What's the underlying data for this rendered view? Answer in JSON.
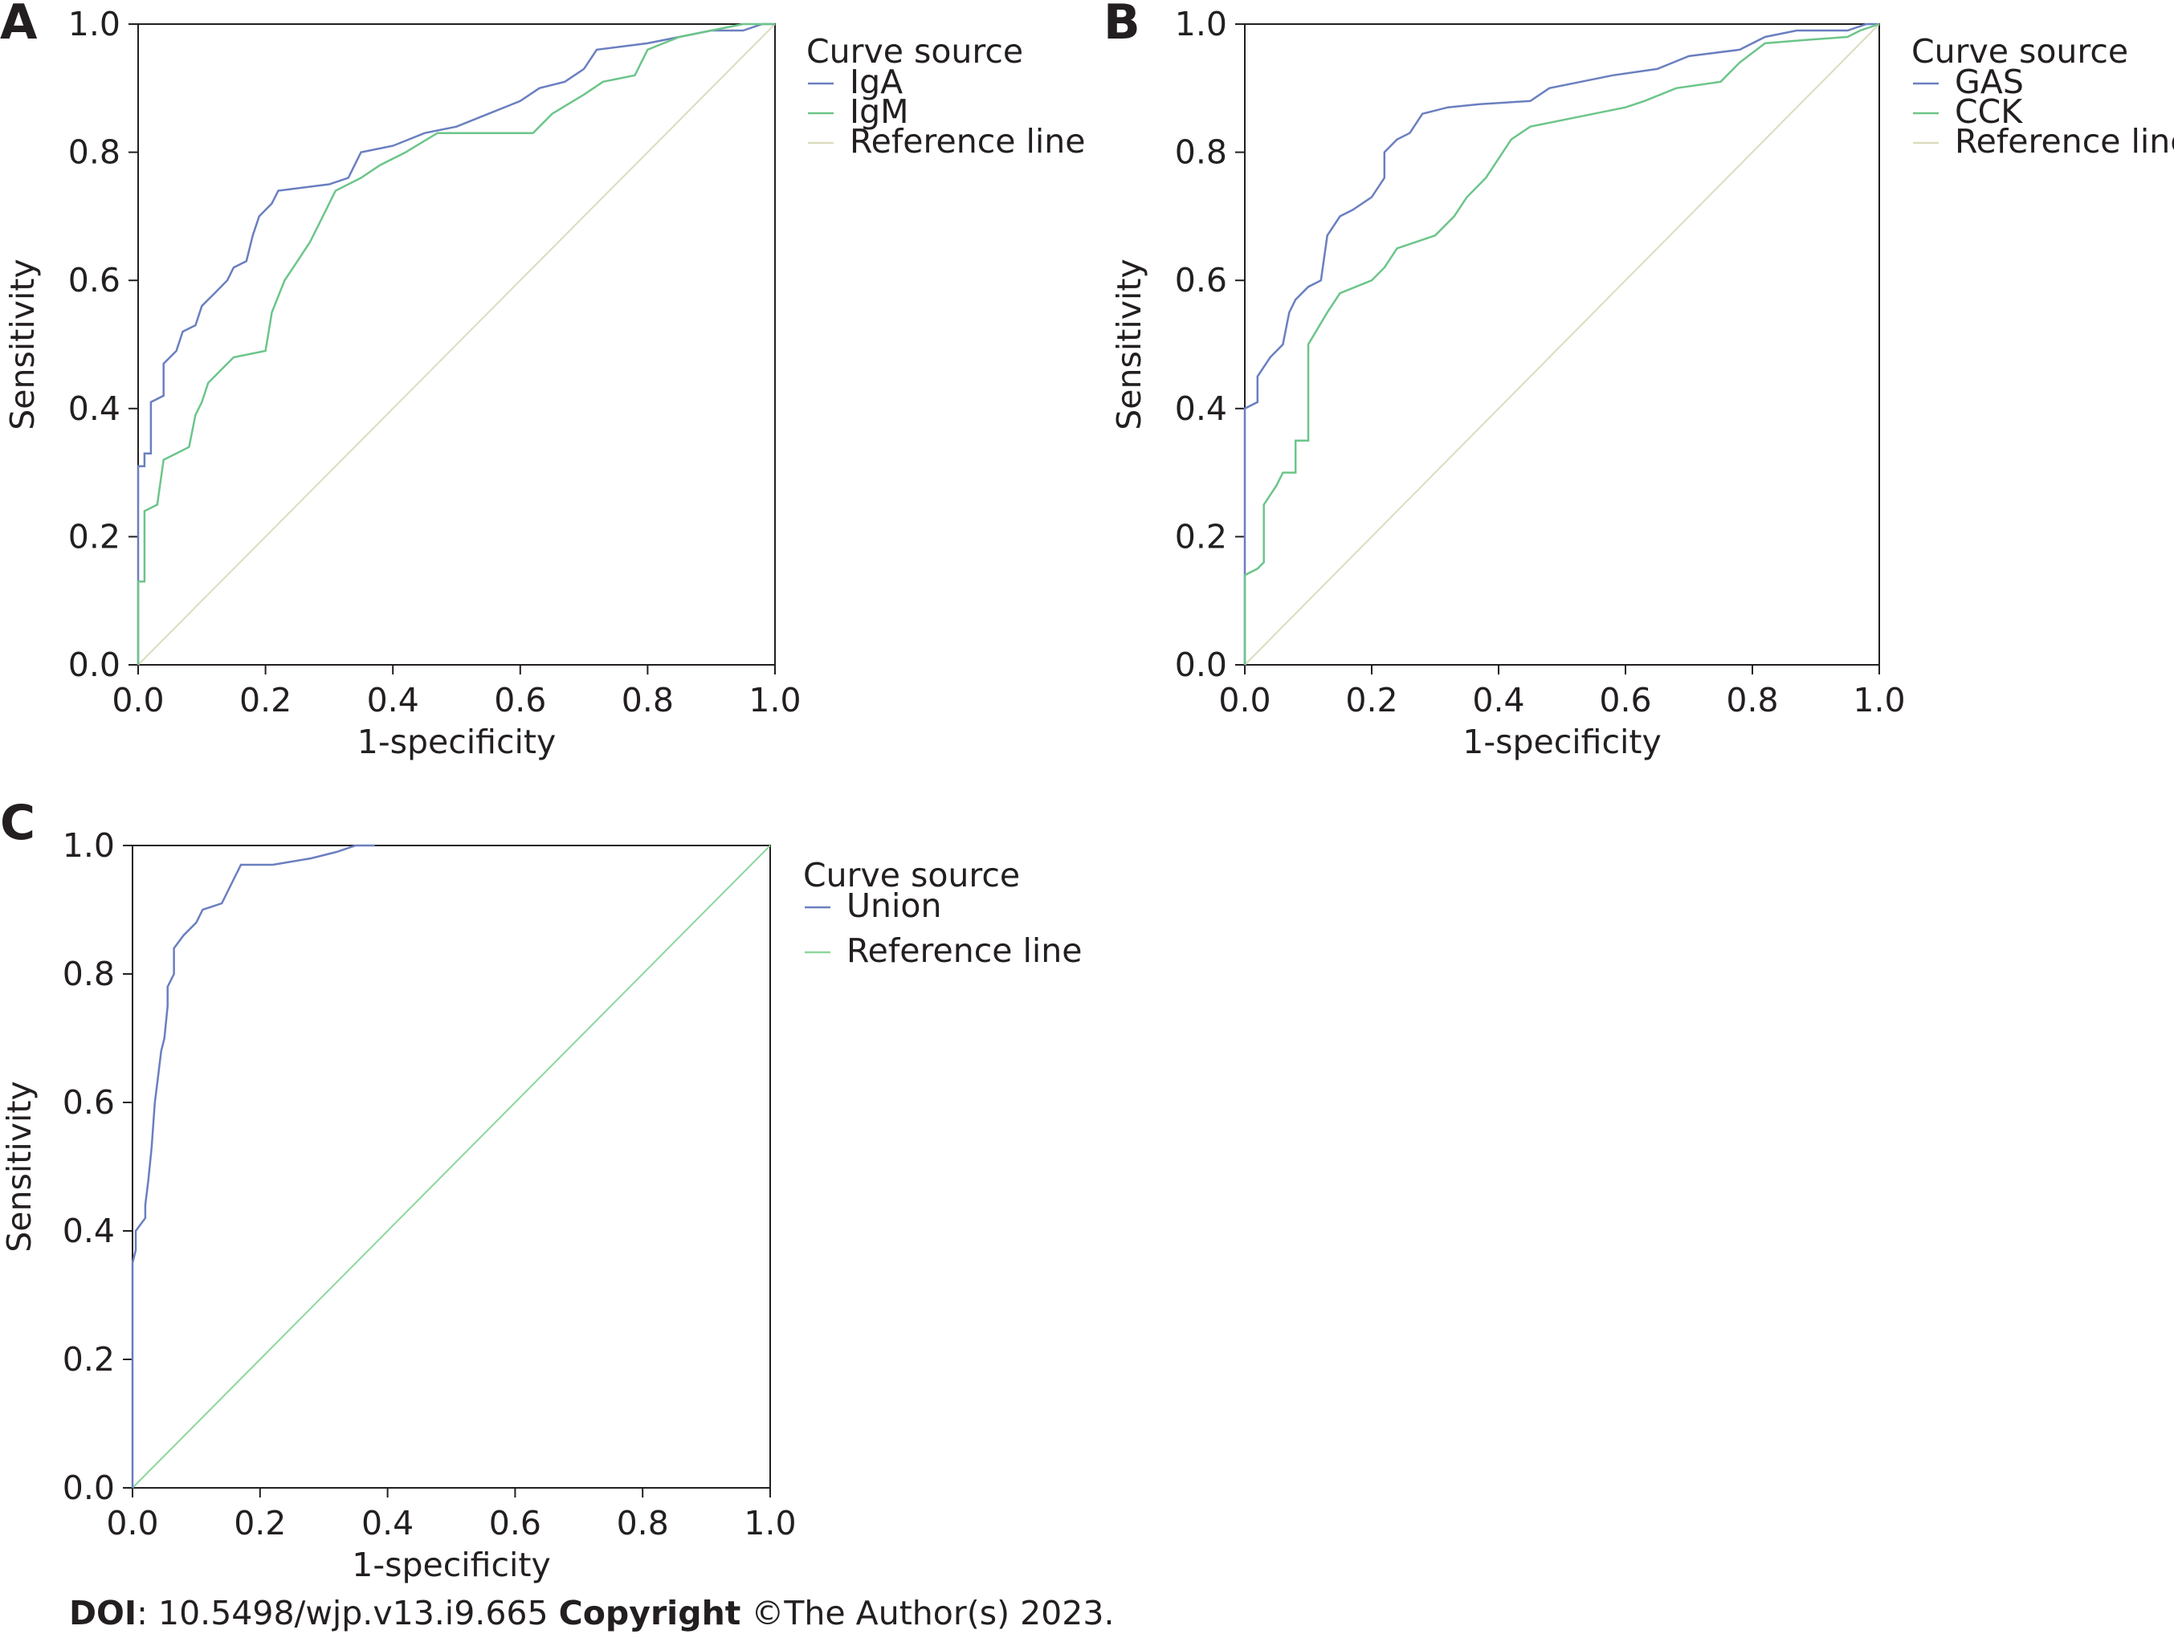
{
  "colors": {
    "blue": "#6a7fc0",
    "green": "#6cc58a",
    "reference_tan": "#dcdcc0",
    "reference_green": "#8dd79c",
    "text": "#231f20",
    "axis": "#231f20"
  },
  "footer": {
    "doi_label": "DOI",
    "doi_value": ": 10.5498/wjp.v13.i9.665 ",
    "copyright_label": "Copyright",
    "copyright_value": " ©The Author(s) 2023."
  },
  "chart_data": [
    {
      "panel": "A",
      "type": "line",
      "xlabel": "1-specificity",
      "ylabel": "Sensitivity",
      "xlim": [
        0,
        1
      ],
      "ylim": [
        0,
        1
      ],
      "xticks": [
        "0.0",
        "0.2",
        "0.4",
        "0.6",
        "0.8",
        "1.0"
      ],
      "yticks": [
        "0.0",
        "0.2",
        "0.4",
        "0.6",
        "0.8",
        "1.0"
      ],
      "legend_title": "Curve source",
      "legend_position": "right",
      "series": [
        {
          "name": "IgA",
          "color_key": "blue",
          "points": [
            [
              0,
              0
            ],
            [
              0,
              0.31
            ],
            [
              0.01,
              0.31
            ],
            [
              0.01,
              0.33
            ],
            [
              0.02,
              0.33
            ],
            [
              0.02,
              0.41
            ],
            [
              0.04,
              0.42
            ],
            [
              0.04,
              0.47
            ],
            [
              0.06,
              0.49
            ],
            [
              0.07,
              0.52
            ],
            [
              0.09,
              0.53
            ],
            [
              0.1,
              0.56
            ],
            [
              0.12,
              0.58
            ],
            [
              0.14,
              0.6
            ],
            [
              0.15,
              0.62
            ],
            [
              0.17,
              0.63
            ],
            [
              0.18,
              0.67
            ],
            [
              0.19,
              0.7
            ],
            [
              0.21,
              0.72
            ],
            [
              0.22,
              0.74
            ],
            [
              0.26,
              0.745
            ],
            [
              0.3,
              0.75
            ],
            [
              0.33,
              0.76
            ],
            [
              0.35,
              0.8
            ],
            [
              0.4,
              0.81
            ],
            [
              0.45,
              0.83
            ],
            [
              0.5,
              0.84
            ],
            [
              0.55,
              0.86
            ],
            [
              0.6,
              0.88
            ],
            [
              0.63,
              0.9
            ],
            [
              0.67,
              0.91
            ],
            [
              0.7,
              0.93
            ],
            [
              0.72,
              0.96
            ],
            [
              0.8,
              0.97
            ],
            [
              0.85,
              0.98
            ],
            [
              0.9,
              0.99
            ],
            [
              0.95,
              0.99
            ],
            [
              0.98,
              1.0
            ],
            [
              1,
              1
            ]
          ]
        },
        {
          "name": "IgM",
          "color_key": "green",
          "points": [
            [
              0,
              0
            ],
            [
              0,
              0.13
            ],
            [
              0.01,
              0.13
            ],
            [
              0.01,
              0.24
            ],
            [
              0.03,
              0.25
            ],
            [
              0.04,
              0.32
            ],
            [
              0.06,
              0.33
            ],
            [
              0.08,
              0.34
            ],
            [
              0.09,
              0.39
            ],
            [
              0.1,
              0.41
            ],
            [
              0.11,
              0.44
            ],
            [
              0.13,
              0.46
            ],
            [
              0.15,
              0.48
            ],
            [
              0.2,
              0.49
            ],
            [
              0.21,
              0.55
            ],
            [
              0.23,
              0.6
            ],
            [
              0.25,
              0.63
            ],
            [
              0.27,
              0.66
            ],
            [
              0.29,
              0.7
            ],
            [
              0.31,
              0.74
            ],
            [
              0.35,
              0.76
            ],
            [
              0.38,
              0.78
            ],
            [
              0.42,
              0.8
            ],
            [
              0.47,
              0.83
            ],
            [
              0.55,
              0.83
            ],
            [
              0.62,
              0.83
            ],
            [
              0.65,
              0.86
            ],
            [
              0.7,
              0.89
            ],
            [
              0.73,
              0.91
            ],
            [
              0.78,
              0.92
            ],
            [
              0.8,
              0.96
            ],
            [
              0.85,
              0.98
            ],
            [
              0.9,
              0.99
            ],
            [
              0.95,
              1.0
            ],
            [
              1,
              1
            ]
          ]
        },
        {
          "name": "Reference line",
          "color_key": "reference_tan",
          "points": [
            [
              0,
              0
            ],
            [
              1,
              1
            ]
          ]
        }
      ]
    },
    {
      "panel": "B",
      "type": "line",
      "xlabel": "1-specificity",
      "ylabel": "Sensitivity",
      "xlim": [
        0,
        1
      ],
      "ylim": [
        0,
        1
      ],
      "xticks": [
        "0.0",
        "0.2",
        "0.4",
        "0.6",
        "0.8",
        "1.0"
      ],
      "yticks": [
        "0.0",
        "0.2",
        "0.4",
        "0.6",
        "0.8",
        "1.0"
      ],
      "legend_title": "Curve source",
      "legend_position": "right",
      "series": [
        {
          "name": "GAS",
          "color_key": "blue",
          "points": [
            [
              0,
              0
            ],
            [
              0,
              0.4
            ],
            [
              0.02,
              0.41
            ],
            [
              0.02,
              0.45
            ],
            [
              0.04,
              0.48
            ],
            [
              0.06,
              0.5
            ],
            [
              0.07,
              0.55
            ],
            [
              0.08,
              0.57
            ],
            [
              0.1,
              0.59
            ],
            [
              0.12,
              0.6
            ],
            [
              0.13,
              0.67
            ],
            [
              0.15,
              0.7
            ],
            [
              0.17,
              0.71
            ],
            [
              0.2,
              0.73
            ],
            [
              0.22,
              0.76
            ],
            [
              0.22,
              0.8
            ],
            [
              0.24,
              0.82
            ],
            [
              0.26,
              0.83
            ],
            [
              0.28,
              0.86
            ],
            [
              0.32,
              0.87
            ],
            [
              0.37,
              0.875
            ],
            [
              0.45,
              0.88
            ],
            [
              0.48,
              0.9
            ],
            [
              0.53,
              0.91
            ],
            [
              0.58,
              0.92
            ],
            [
              0.65,
              0.93
            ],
            [
              0.7,
              0.95
            ],
            [
              0.78,
              0.96
            ],
            [
              0.82,
              0.98
            ],
            [
              0.87,
              0.99
            ],
            [
              0.95,
              0.99
            ],
            [
              0.98,
              1.0
            ],
            [
              1,
              1
            ]
          ]
        },
        {
          "name": "CCK",
          "color_key": "green",
          "points": [
            [
              0,
              0
            ],
            [
              0,
              0.14
            ],
            [
              0.02,
              0.15
            ],
            [
              0.03,
              0.16
            ],
            [
              0.03,
              0.25
            ],
            [
              0.05,
              0.28
            ],
            [
              0.06,
              0.3
            ],
            [
              0.08,
              0.3
            ],
            [
              0.08,
              0.35
            ],
            [
              0.1,
              0.35
            ],
            [
              0.1,
              0.5
            ],
            [
              0.13,
              0.55
            ],
            [
              0.15,
              0.58
            ],
            [
              0.2,
              0.6
            ],
            [
              0.22,
              0.62
            ],
            [
              0.24,
              0.65
            ],
            [
              0.27,
              0.66
            ],
            [
              0.3,
              0.67
            ],
            [
              0.33,
              0.7
            ],
            [
              0.35,
              0.73
            ],
            [
              0.38,
              0.76
            ],
            [
              0.4,
              0.79
            ],
            [
              0.42,
              0.82
            ],
            [
              0.45,
              0.84
            ],
            [
              0.5,
              0.85
            ],
            [
              0.55,
              0.86
            ],
            [
              0.6,
              0.87
            ],
            [
              0.63,
              0.88
            ],
            [
              0.68,
              0.9
            ],
            [
              0.75,
              0.91
            ],
            [
              0.78,
              0.94
            ],
            [
              0.82,
              0.97
            ],
            [
              0.88,
              0.975
            ],
            [
              0.95,
              0.98
            ],
            [
              0.97,
              0.99
            ],
            [
              1,
              1
            ]
          ]
        },
        {
          "name": "Reference line",
          "color_key": "reference_tan",
          "points": [
            [
              0,
              0
            ],
            [
              1,
              1
            ]
          ]
        }
      ]
    },
    {
      "panel": "C",
      "type": "line",
      "xlabel": "1-specificity",
      "ylabel": "Sensitivity",
      "xlim": [
        0,
        1
      ],
      "ylim": [
        0,
        1
      ],
      "xticks": [
        "0.0",
        "0.2",
        "0.4",
        "0.6",
        "0.8",
        "1.0"
      ],
      "yticks": [
        "0.0",
        "0.2",
        "0.4",
        "0.6",
        "0.8",
        "1.0"
      ],
      "legend_title": "Curve source",
      "legend_position": "right",
      "series": [
        {
          "name": "Union",
          "color_key": "blue",
          "points": [
            [
              0,
              0
            ],
            [
              0,
              0.35
            ],
            [
              0.005,
              0.37
            ],
            [
              0.005,
              0.4
            ],
            [
              0.02,
              0.42
            ],
            [
              0.02,
              0.44
            ],
            [
              0.025,
              0.48
            ],
            [
              0.03,
              0.53
            ],
            [
              0.035,
              0.6
            ],
            [
              0.04,
              0.64
            ],
            [
              0.045,
              0.68
            ],
            [
              0.05,
              0.7
            ],
            [
              0.055,
              0.75
            ],
            [
              0.055,
              0.78
            ],
            [
              0.065,
              0.8
            ],
            [
              0.065,
              0.84
            ],
            [
              0.08,
              0.86
            ],
            [
              0.1,
              0.88
            ],
            [
              0.11,
              0.9
            ],
            [
              0.14,
              0.91
            ],
            [
              0.15,
              0.93
            ],
            [
              0.16,
              0.95
            ],
            [
              0.17,
              0.97
            ],
            [
              0.22,
              0.97
            ],
            [
              0.28,
              0.98
            ],
            [
              0.32,
              0.99
            ],
            [
              0.35,
              1.0
            ],
            [
              0.38,
              1.0
            ]
          ]
        },
        {
          "name": "Reference line",
          "color_key": "reference_green",
          "points": [
            [
              0,
              0
            ],
            [
              1,
              1
            ]
          ]
        }
      ]
    }
  ]
}
